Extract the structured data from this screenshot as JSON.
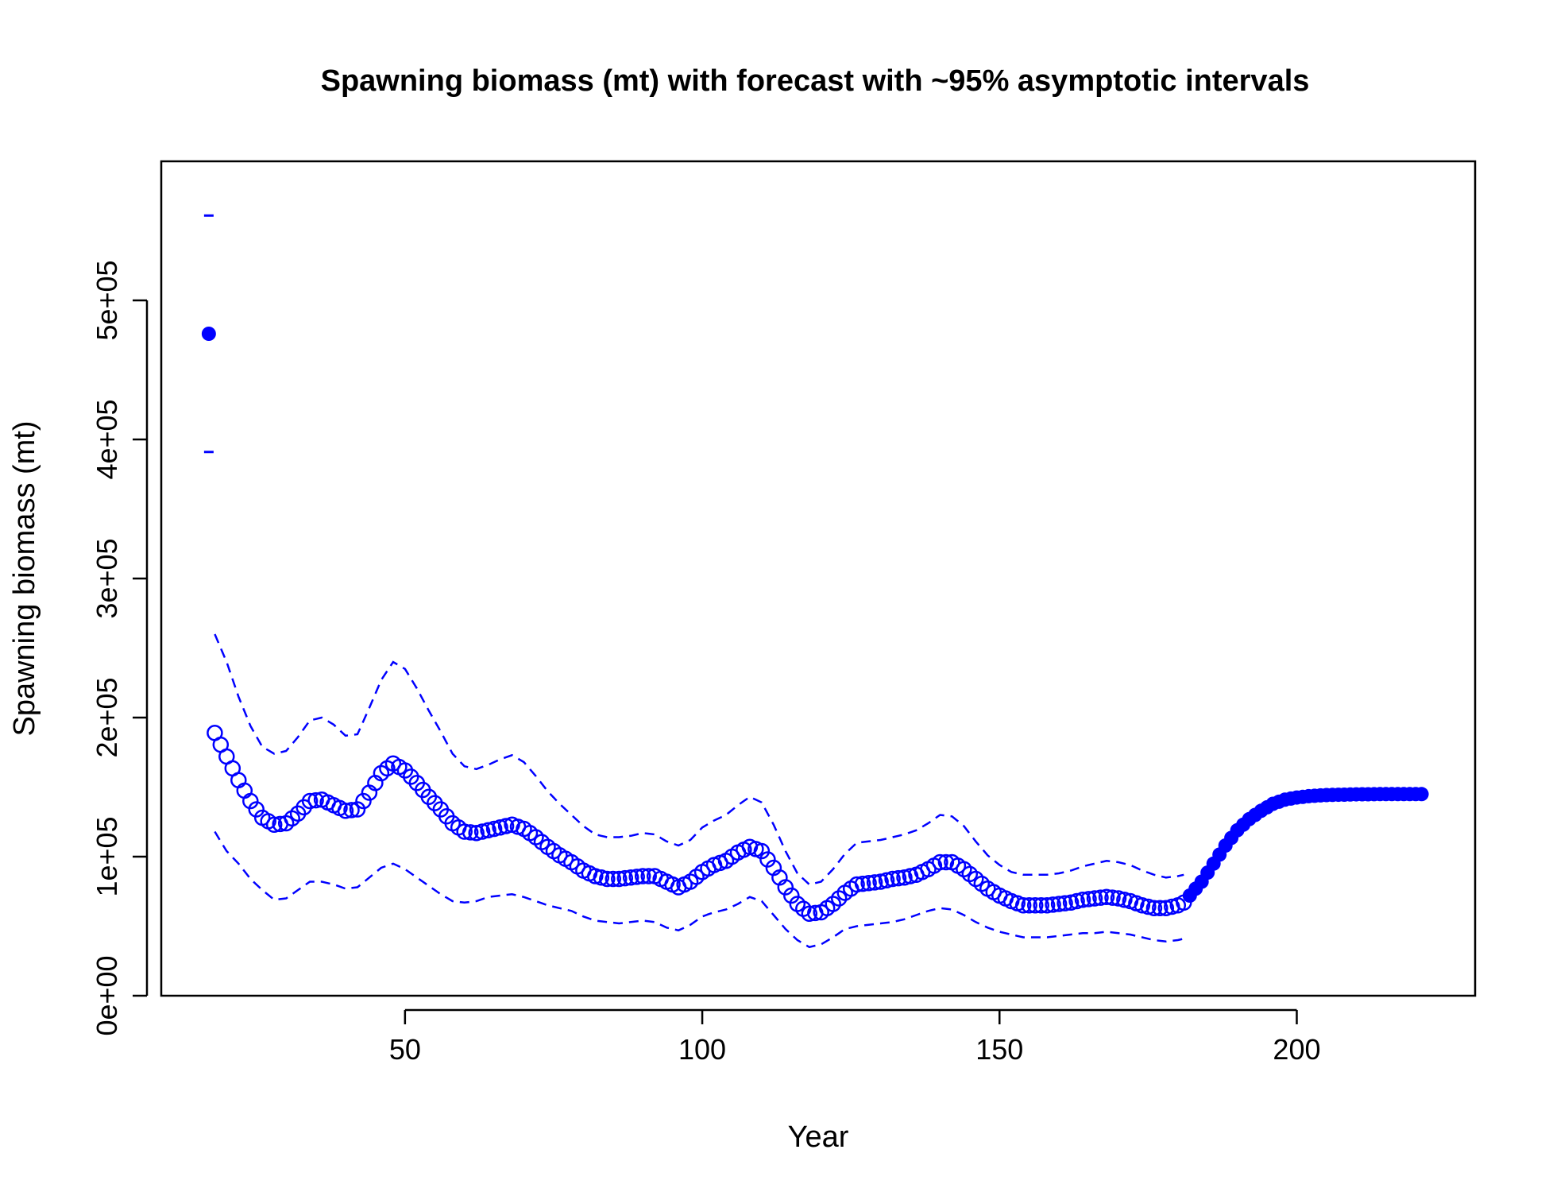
{
  "chart_data": {
    "type": "scatter",
    "title": "Spawning biomass (mt) with forecast with ~95% asymptotic intervals",
    "xlabel": "Year",
    "ylabel": "Spawning biomass (mt)",
    "xlim": [
      9,
      230
    ],
    "ylim": [
      0,
      600000
    ],
    "x_ticks": [
      50,
      100,
      150,
      200
    ],
    "x_tick_labels": [
      "50",
      "100",
      "150",
      "200"
    ],
    "y_ticks": [
      0,
      100000,
      200000,
      300000,
      400000,
      500000
    ],
    "y_tick_labels": [
      "0e+00",
      "1e+05",
      "2e+05",
      "3e+05",
      "4e+05",
      "5e+05"
    ],
    "grid": false,
    "legend": "none",
    "colors": {
      "series": "#0000ff",
      "axis": "#000000"
    },
    "virgin": {
      "x": 17,
      "y": 476000,
      "lower": 391000,
      "upper": 561000
    },
    "estimate_anchors": [
      [
        18,
        189000
      ],
      [
        20,
        172000
      ],
      [
        22,
        155000
      ],
      [
        24,
        140000
      ],
      [
        26,
        128000
      ],
      [
        28,
        123000
      ],
      [
        30,
        124000
      ],
      [
        32,
        131000
      ],
      [
        34,
        140000
      ],
      [
        36,
        141000
      ],
      [
        38,
        137000
      ],
      [
        40,
        133000
      ],
      [
        42,
        134000
      ],
      [
        44,
        146000
      ],
      [
        46,
        160000
      ],
      [
        48,
        167000
      ],
      [
        50,
        162000
      ],
      [
        52,
        153000
      ],
      [
        54,
        143000
      ],
      [
        56,
        134000
      ],
      [
        58,
        124000
      ],
      [
        60,
        118000
      ],
      [
        62,
        117000
      ],
      [
        64,
        119000
      ],
      [
        66,
        121000
      ],
      [
        68,
        123000
      ],
      [
        70,
        120000
      ],
      [
        72,
        114000
      ],
      [
        74,
        107000
      ],
      [
        76,
        101000
      ],
      [
        78,
        96000
      ],
      [
        80,
        90000
      ],
      [
        82,
        86000
      ],
      [
        84,
        84000
      ],
      [
        86,
        84000
      ],
      [
        88,
        85000
      ],
      [
        90,
        86000
      ],
      [
        92,
        86000
      ],
      [
        94,
        82000
      ],
      [
        96,
        78000
      ],
      [
        98,
        82000
      ],
      [
        100,
        89000
      ],
      [
        102,
        94000
      ],
      [
        104,
        97000
      ],
      [
        106,
        103000
      ],
      [
        108,
        107000
      ],
      [
        110,
        104000
      ],
      [
        112,
        92000
      ],
      [
        114,
        78000
      ],
      [
        116,
        66000
      ],
      [
        118,
        59000
      ],
      [
        120,
        60000
      ],
      [
        122,
        66000
      ],
      [
        124,
        74000
      ],
      [
        126,
        80000
      ],
      [
        128,
        81000
      ],
      [
        130,
        82000
      ],
      [
        132,
        84000
      ],
      [
        134,
        85000
      ],
      [
        136,
        87000
      ],
      [
        138,
        91000
      ],
      [
        140,
        96000
      ],
      [
        142,
        96000
      ],
      [
        144,
        91000
      ],
      [
        146,
        84000
      ],
      [
        148,
        77000
      ],
      [
        150,
        72000
      ],
      [
        152,
        68000
      ],
      [
        154,
        65000
      ],
      [
        156,
        65000
      ],
      [
        158,
        65000
      ],
      [
        160,
        66000
      ],
      [
        162,
        67000
      ],
      [
        164,
        69000
      ],
      [
        166,
        70000
      ],
      [
        168,
        71000
      ],
      [
        170,
        70000
      ],
      [
        172,
        68000
      ],
      [
        174,
        65000
      ],
      [
        176,
        63000
      ],
      [
        178,
        63000
      ],
      [
        180,
        65000
      ],
      [
        181,
        67000
      ]
    ],
    "upper_anchors": [
      [
        18,
        260000
      ],
      [
        20,
        240000
      ],
      [
        22,
        215000
      ],
      [
        24,
        194000
      ],
      [
        26,
        179000
      ],
      [
        28,
        174000
      ],
      [
        30,
        176000
      ],
      [
        32,
        186000
      ],
      [
        34,
        198000
      ],
      [
        36,
        200000
      ],
      [
        38,
        195000
      ],
      [
        40,
        187000
      ],
      [
        42,
        188000
      ],
      [
        44,
        207000
      ],
      [
        46,
        227000
      ],
      [
        48,
        240000
      ],
      [
        50,
        235000
      ],
      [
        52,
        221000
      ],
      [
        54,
        205000
      ],
      [
        56,
        190000
      ],
      [
        58,
        174000
      ],
      [
        60,
        165000
      ],
      [
        62,
        163000
      ],
      [
        64,
        166000
      ],
      [
        66,
        170000
      ],
      [
        68,
        173000
      ],
      [
        70,
        168000
      ],
      [
        72,
        158000
      ],
      [
        74,
        147000
      ],
      [
        76,
        138000
      ],
      [
        78,
        130000
      ],
      [
        80,
        122000
      ],
      [
        82,
        116000
      ],
      [
        84,
        114000
      ],
      [
        86,
        114000
      ],
      [
        88,
        115000
      ],
      [
        90,
        117000
      ],
      [
        92,
        116000
      ],
      [
        94,
        111000
      ],
      [
        96,
        108000
      ],
      [
        98,
        112000
      ],
      [
        100,
        121000
      ],
      [
        102,
        126000
      ],
      [
        104,
        130000
      ],
      [
        106,
        137000
      ],
      [
        108,
        143000
      ],
      [
        110,
        139000
      ],
      [
        112,
        123000
      ],
      [
        114,
        104000
      ],
      [
        116,
        88000
      ],
      [
        118,
        80000
      ],
      [
        120,
        82000
      ],
      [
        122,
        91000
      ],
      [
        124,
        102000
      ],
      [
        126,
        110000
      ],
      [
        128,
        111000
      ],
      [
        130,
        112000
      ],
      [
        132,
        114000
      ],
      [
        134,
        116000
      ],
      [
        136,
        119000
      ],
      [
        138,
        124000
      ],
      [
        140,
        130000
      ],
      [
        142,
        129000
      ],
      [
        144,
        122000
      ],
      [
        146,
        111000
      ],
      [
        148,
        101000
      ],
      [
        150,
        94000
      ],
      [
        152,
        89000
      ],
      [
        154,
        87000
      ],
      [
        156,
        87000
      ],
      [
        158,
        87000
      ],
      [
        160,
        88000
      ],
      [
        162,
        90000
      ],
      [
        164,
        93000
      ],
      [
        166,
        95000
      ],
      [
        168,
        97000
      ],
      [
        170,
        96000
      ],
      [
        172,
        94000
      ],
      [
        174,
        90000
      ],
      [
        176,
        87000
      ],
      [
        178,
        85000
      ],
      [
        180,
        86000
      ],
      [
        181,
        87000
      ]
    ],
    "lower_anchors": [
      [
        18,
        118000
      ],
      [
        20,
        104000
      ],
      [
        22,
        95000
      ],
      [
        24,
        84000
      ],
      [
        26,
        76000
      ],
      [
        28,
        69000
      ],
      [
        30,
        70000
      ],
      [
        32,
        76000
      ],
      [
        34,
        82000
      ],
      [
        36,
        82000
      ],
      [
        38,
        80000
      ],
      [
        40,
        77000
      ],
      [
        42,
        78000
      ],
      [
        44,
        85000
      ],
      [
        46,
        92000
      ],
      [
        48,
        95000
      ],
      [
        50,
        91000
      ],
      [
        52,
        85000
      ],
      [
        54,
        79000
      ],
      [
        56,
        73000
      ],
      [
        58,
        68000
      ],
      [
        60,
        67000
      ],
      [
        62,
        68000
      ],
      [
        64,
        71000
      ],
      [
        66,
        72000
      ],
      [
        68,
        73000
      ],
      [
        70,
        71000
      ],
      [
        72,
        68000
      ],
      [
        74,
        65000
      ],
      [
        76,
        63000
      ],
      [
        78,
        61000
      ],
      [
        80,
        57000
      ],
      [
        82,
        54000
      ],
      [
        84,
        53000
      ],
      [
        86,
        52000
      ],
      [
        88,
        53000
      ],
      [
        90,
        54000
      ],
      [
        92,
        53000
      ],
      [
        94,
        49000
      ],
      [
        96,
        47000
      ],
      [
        98,
        51000
      ],
      [
        100,
        57000
      ],
      [
        102,
        60000
      ],
      [
        104,
        62000
      ],
      [
        106,
        66000
      ],
      [
        108,
        71000
      ],
      [
        110,
        68000
      ],
      [
        112,
        58000
      ],
      [
        114,
        48000
      ],
      [
        116,
        40000
      ],
      [
        118,
        35000
      ],
      [
        120,
        37000
      ],
      [
        122,
        42000
      ],
      [
        124,
        48000
      ],
      [
        126,
        50000
      ],
      [
        128,
        51000
      ],
      [
        130,
        52000
      ],
      [
        132,
        53000
      ],
      [
        134,
        55000
      ],
      [
        136,
        58000
      ],
      [
        138,
        61000
      ],
      [
        140,
        63000
      ],
      [
        142,
        62000
      ],
      [
        144,
        58000
      ],
      [
        146,
        53000
      ],
      [
        148,
        49000
      ],
      [
        150,
        46000
      ],
      [
        152,
        44000
      ],
      [
        154,
        42000
      ],
      [
        156,
        42000
      ],
      [
        158,
        42000
      ],
      [
        160,
        43000
      ],
      [
        162,
        44000
      ],
      [
        164,
        45000
      ],
      [
        166,
        45000
      ],
      [
        168,
        46000
      ],
      [
        170,
        45000
      ],
      [
        172,
        44000
      ],
      [
        174,
        42000
      ],
      [
        176,
        40000
      ],
      [
        178,
        39000
      ],
      [
        180,
        40000
      ],
      [
        181,
        41000
      ]
    ],
    "forecast_anchors": [
      [
        182,
        72000
      ],
      [
        184,
        82000
      ],
      [
        186,
        95000
      ],
      [
        188,
        108000
      ],
      [
        190,
        119000
      ],
      [
        192,
        127000
      ],
      [
        194,
        133000
      ],
      [
        196,
        138000
      ],
      [
        198,
        141000
      ],
      [
        200,
        142500
      ],
      [
        202,
        143500
      ],
      [
        205,
        144300
      ],
      [
        210,
        144800
      ],
      [
        215,
        145000
      ],
      [
        221,
        145000
      ]
    ]
  }
}
